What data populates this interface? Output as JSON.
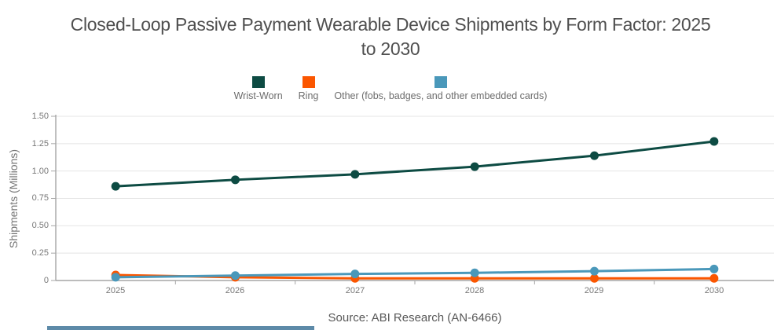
{
  "page": {
    "title_line1": "Closed-Loop Passive Payment Wearable Device Shipments by Form Factor: 2025",
    "title_line2": "to 2030",
    "source": "Source: ABI Research (AN-6466)"
  },
  "chart_data": {
    "type": "line",
    "title": "Closed-Loop Passive Payment Wearable Device Shipments by Form Factor: 2025 to 2030",
    "categories": [
      "2025",
      "2026",
      "2027",
      "2028",
      "2029",
      "2030"
    ],
    "series": [
      {
        "name": "Wrist-Worn",
        "color": "#0d4b43",
        "values": [
          0.86,
          0.92,
          0.97,
          1.04,
          1.14,
          1.27
        ]
      },
      {
        "name": "Ring",
        "color": "#fb5600",
        "values": [
          0.05,
          0.03,
          0.02,
          0.02,
          0.02,
          0.02
        ]
      },
      {
        "name": "Other (fobs, badges, and other embedded cards)",
        "color": "#4a98ba",
        "values": [
          0.03,
          0.045,
          0.06,
          0.07,
          0.085,
          0.105
        ]
      }
    ],
    "xlabel": "",
    "ylabel": "Shipments (Millions)",
    "ylim": [
      0,
      1.5
    ],
    "yticks": [
      "1.50",
      "1.25",
      "1.00",
      "0.75",
      "0.50",
      "0.25",
      "0"
    ],
    "ytick_values": [
      1.5,
      1.25,
      1.0,
      0.75,
      0.5,
      0.25,
      0
    ],
    "grid": true,
    "legend_position": "top-center",
    "axis_color": "#a6a6a6",
    "gridline_color": "#e4e4e4"
  }
}
